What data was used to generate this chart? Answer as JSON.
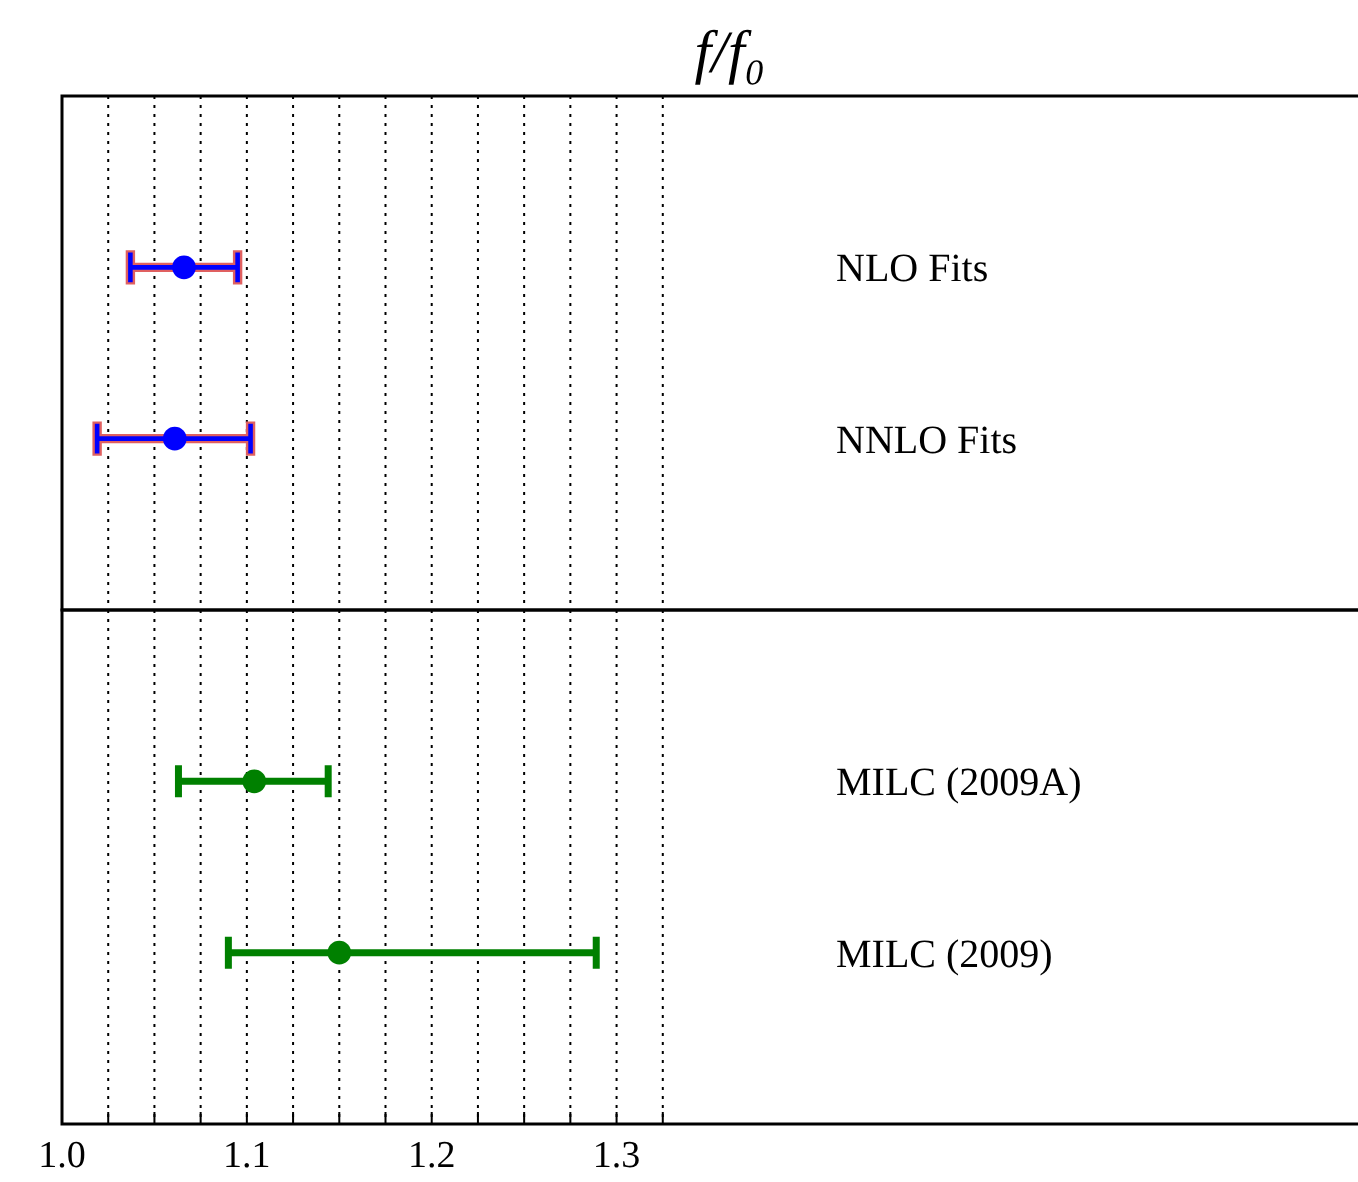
{
  "chart_data": [
    {
      "type": "scatter",
      "orientation": "horizontal",
      "title": "f/f₀",
      "categories": [
        "NLO Fits",
        "NNLO Fits"
      ],
      "color": "#0000ff",
      "values": [
        1.066,
        1.061
      ],
      "errors": [
        [
          1.037,
          1.095
        ],
        [
          1.019,
          1.102
        ]
      ],
      "xlim": [
        1.0,
        1.7
      ],
      "xticks": [
        {
          "value": 1,
          "label": null
        },
        {
          "value": 1.025,
          "label": null
        },
        {
          "value": 1.05,
          "label": null
        },
        {
          "value": 1.075,
          "label": null
        },
        {
          "value": 1.1,
          "label": null
        },
        {
          "value": 1.125,
          "label": null
        },
        {
          "value": 1.15,
          "label": null
        },
        {
          "value": 1.175,
          "label": null
        },
        {
          "value": 1.2,
          "label": null
        },
        {
          "value": 1.225,
          "label": null
        },
        {
          "value": 1.25,
          "label": null
        },
        {
          "value": 1.275,
          "label": null
        },
        {
          "value": 1.3,
          "label": null
        },
        {
          "value": 1.325,
          "label": null
        }
      ],
      "tick_labels": false,
      "grid": "x",
      "marker": "circle"
    },
    {
      "type": "scatter",
      "orientation": "horizontal",
      "categories": [
        "MILC (2009A)",
        "MILC (2009)"
      ],
      "color": "#008000",
      "values": [
        1.104,
        1.15
      ],
      "errors": [
        [
          1.063,
          1.144
        ],
        [
          1.09,
          1.289
        ]
      ],
      "xlim": [
        1.0,
        1.7
      ],
      "xticks": [
        {
          "value": 1,
          "label": "1.0"
        },
        {
          "value": 1.025,
          "label": null
        },
        {
          "value": 1.05,
          "label": null
        },
        {
          "value": 1.075,
          "label": null
        },
        1.1,
        {
          "value": 1.125,
          "label": null
        },
        {
          "value": 1.15,
          "label": null
        },
        {
          "value": 1.175,
          "label": null
        },
        1.2,
        {
          "value": 1.225,
          "label": null
        },
        {
          "value": 1.25,
          "label": null
        },
        {
          "value": 1.275,
          "label": null
        },
        1.3,
        {
          "value": 1.325,
          "label": null
        }
      ],
      "grid": "x",
      "marker": "circle"
    }
  ]
}
